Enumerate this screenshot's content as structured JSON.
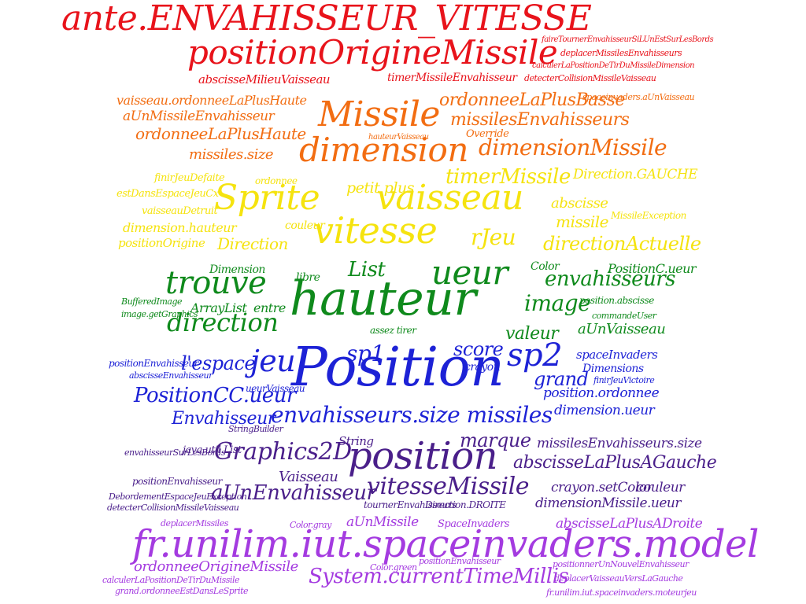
{
  "colors": {
    "red": "#e8131b",
    "orange": "#f26d12",
    "yellow": "#f5e30f",
    "green": "#0f8a1c",
    "blue": "#1d22d6",
    "indigo": "#4a1f8a",
    "violet": "#a43be0"
  },
  "words": [
    {
      "text": "ante.ENVAHISSEUR_VITESSE",
      "band": "red"
    },
    {
      "text": "positionOrigineMissile",
      "band": "red"
    },
    {
      "text": "abscisseMilieuVaisseau",
      "band": "red"
    },
    {
      "text": "timerMissileEnvahisseur",
      "band": "red"
    },
    {
      "text": "detecterCollisionMissileVaisseau",
      "band": "red"
    },
    {
      "text": "calculerLaPositionDeTirDuMissileDimension",
      "band": "red"
    },
    {
      "text": "deplacerMissilesEnvahisseurs",
      "band": "red"
    },
    {
      "text": "faireTournerEnvahisseurSiLUnEstSurLesBords",
      "band": "red"
    },
    {
      "text": "ordonneeLaPlusBasse",
      "band": "orange"
    },
    {
      "text": "vaisseau.ordonneeLaPlusHaute",
      "band": "orange"
    },
    {
      "text": "aUnMissileEnvahisseur",
      "band": "orange"
    },
    {
      "text": "Missile",
      "band": "orange"
    },
    {
      "text": "missilesEnvahisseurs",
      "band": "orange"
    },
    {
      "text": "ordonneeLaPlusHaute",
      "band": "orange"
    },
    {
      "text": "dimension",
      "band": "orange"
    },
    {
      "text": "dimensionMissile",
      "band": "orange"
    },
    {
      "text": "missiles.size",
      "band": "orange"
    },
    {
      "text": "spaceinvaders.aUnVaisseau",
      "band": "orange"
    },
    {
      "text": "Override",
      "band": "orange"
    },
    {
      "text": "hauteurVaisseau",
      "band": "orange"
    },
    {
      "text": "timerMissile",
      "band": "yellow"
    },
    {
      "text": "Direction.GAUCHE",
      "band": "yellow"
    },
    {
      "text": "Sprite",
      "band": "yellow"
    },
    {
      "text": "vaisseau",
      "band": "yellow"
    },
    {
      "text": "petit plus",
      "band": "yellow"
    },
    {
      "text": "vitesse",
      "band": "yellow"
    },
    {
      "text": "rJeu",
      "band": "yellow"
    },
    {
      "text": "abscisse",
      "band": "yellow"
    },
    {
      "text": "missile",
      "band": "yellow"
    },
    {
      "text": "MissileException",
      "band": "yellow"
    },
    {
      "text": "dimension.hauteur",
      "band": "yellow"
    },
    {
      "text": "directionActuelle",
      "band": "yellow"
    },
    {
      "text": "Direction",
      "band": "yellow"
    },
    {
      "text": "positionOrigine",
      "band": "yellow"
    },
    {
      "text": "vaisseauDetruit",
      "band": "yellow"
    },
    {
      "text": "estDansEspaceJeuCx",
      "band": "yellow"
    },
    {
      "text": "finirJeuDefaite",
      "band": "yellow"
    },
    {
      "text": "ordonnee",
      "band": "yellow"
    },
    {
      "text": "couleur",
      "band": "yellow"
    },
    {
      "text": "hauteur",
      "band": "green"
    },
    {
      "text": "ueur",
      "band": "green"
    },
    {
      "text": "List",
      "band": "green"
    },
    {
      "text": "trouve",
      "band": "green"
    },
    {
      "text": "Dimension",
      "band": "green"
    },
    {
      "text": "direction",
      "band": "green"
    },
    {
      "text": "image",
      "band": "green"
    },
    {
      "text": "envahisseurs",
      "band": "green"
    },
    {
      "text": "PositionC.ueur",
      "band": "green"
    },
    {
      "text": "valeur",
      "band": "green"
    },
    {
      "text": "aUnVaisseau",
      "band": "green"
    },
    {
      "text": "position.abscisse",
      "band": "green"
    },
    {
      "text": "commandeUser",
      "band": "green"
    },
    {
      "text": "ArrayList",
      "band": "green"
    },
    {
      "text": "entre",
      "band": "green"
    },
    {
      "text": "libre",
      "band": "green"
    },
    {
      "text": "BufferedImage",
      "band": "green"
    },
    {
      "text": "image.getGraphics",
      "band": "green"
    },
    {
      "text": "Color",
      "band": "green"
    },
    {
      "text": "assez tirer",
      "band": "green"
    },
    {
      "text": "Position",
      "band": "blue"
    },
    {
      "text": "jeu",
      "band": "blue"
    },
    {
      "text": "sp1",
      "band": "blue"
    },
    {
      "text": "sp2",
      "band": "blue"
    },
    {
      "text": "score",
      "band": "blue"
    },
    {
      "text": "grand",
      "band": "blue"
    },
    {
      "text": "l'espace",
      "band": "blue"
    },
    {
      "text": "PositionCC.ueur",
      "band": "blue"
    },
    {
      "text": "spaceInvaders",
      "band": "blue"
    },
    {
      "text": "Dimensions",
      "band": "blue"
    },
    {
      "text": "crayon",
      "band": "blue"
    },
    {
      "text": "position.ordonnee",
      "band": "blue"
    },
    {
      "text": "dimension.ueur",
      "band": "blue"
    },
    {
      "text": "envahisseurs.size missiles",
      "band": "blue"
    },
    {
      "text": "Envahisseur",
      "band": "blue"
    },
    {
      "text": "ueurVaisseau",
      "band": "blue"
    },
    {
      "text": "positionEnvahisseur",
      "band": "blue"
    },
    {
      "text": "abscisseEnvahisseur",
      "band": "blue"
    },
    {
      "text": "finirJeuVictoire",
      "band": "blue"
    },
    {
      "text": "position",
      "band": "indigo"
    },
    {
      "text": "Graphics2D",
      "band": "indigo"
    },
    {
      "text": "marque",
      "band": "indigo"
    },
    {
      "text": "missilesEnvahisseurs.size",
      "band": "indigo"
    },
    {
      "text": "abscisseLaPlusAGauche",
      "band": "indigo"
    },
    {
      "text": "vitesseMissile",
      "band": "indigo"
    },
    {
      "text": "Vaisseau",
      "band": "indigo"
    },
    {
      "text": "aUnEnvahisseur",
      "band": "indigo"
    },
    {
      "text": "crayon.setColor",
      "band": "indigo"
    },
    {
      "text": "couleur",
      "band": "indigo"
    },
    {
      "text": "dimensionMissile.ueur",
      "band": "indigo"
    },
    {
      "text": "String",
      "band": "indigo"
    },
    {
      "text": "java.util.List",
      "band": "indigo"
    },
    {
      "text": "envahisseurSurLesBords",
      "band": "indigo"
    },
    {
      "text": "positionEnvahisseur",
      "band": "indigo"
    },
    {
      "text": "DebordementEspaceJeuException",
      "band": "indigo"
    },
    {
      "text": "detecterCollisionMissileVaisseau",
      "band": "indigo"
    },
    {
      "text": "StringBuilder",
      "band": "indigo"
    },
    {
      "text": "tournerEnvahisseurs",
      "band": "indigo"
    },
    {
      "text": "Direction.DROITE",
      "band": "indigo"
    },
    {
      "text": "fr.unilim.iut.spaceinvaders.model",
      "band": "violet"
    },
    {
      "text": "System.currentTimeMillis",
      "band": "violet"
    },
    {
      "text": "aUnMissile",
      "band": "violet"
    },
    {
      "text": "SpaceInvaders",
      "band": "violet"
    },
    {
      "text": "abscisseLaPlusADroite",
      "band": "violet"
    },
    {
      "text": "ordonneeOrigineMissile",
      "band": "violet"
    },
    {
      "text": "deplacerMissiles",
      "band": "violet"
    },
    {
      "text": "Color.gray",
      "band": "violet"
    },
    {
      "text": "Color.green",
      "band": "violet"
    },
    {
      "text": "positionEnvahisseur",
      "band": "violet"
    },
    {
      "text": "deplacerVaisseauVersLaGauche",
      "band": "violet"
    },
    {
      "text": "positionnerUnNouvelEnvahisseur",
      "band": "violet"
    },
    {
      "text": "calculerLaPositionDeTirDuMissile",
      "band": "violet"
    },
    {
      "text": "grand.ordonneeEstDansLeSprite",
      "band": "violet"
    },
    {
      "text": "fr.unilim.iut.spaceinvaders.moteurjeu",
      "band": "violet"
    }
  ]
}
